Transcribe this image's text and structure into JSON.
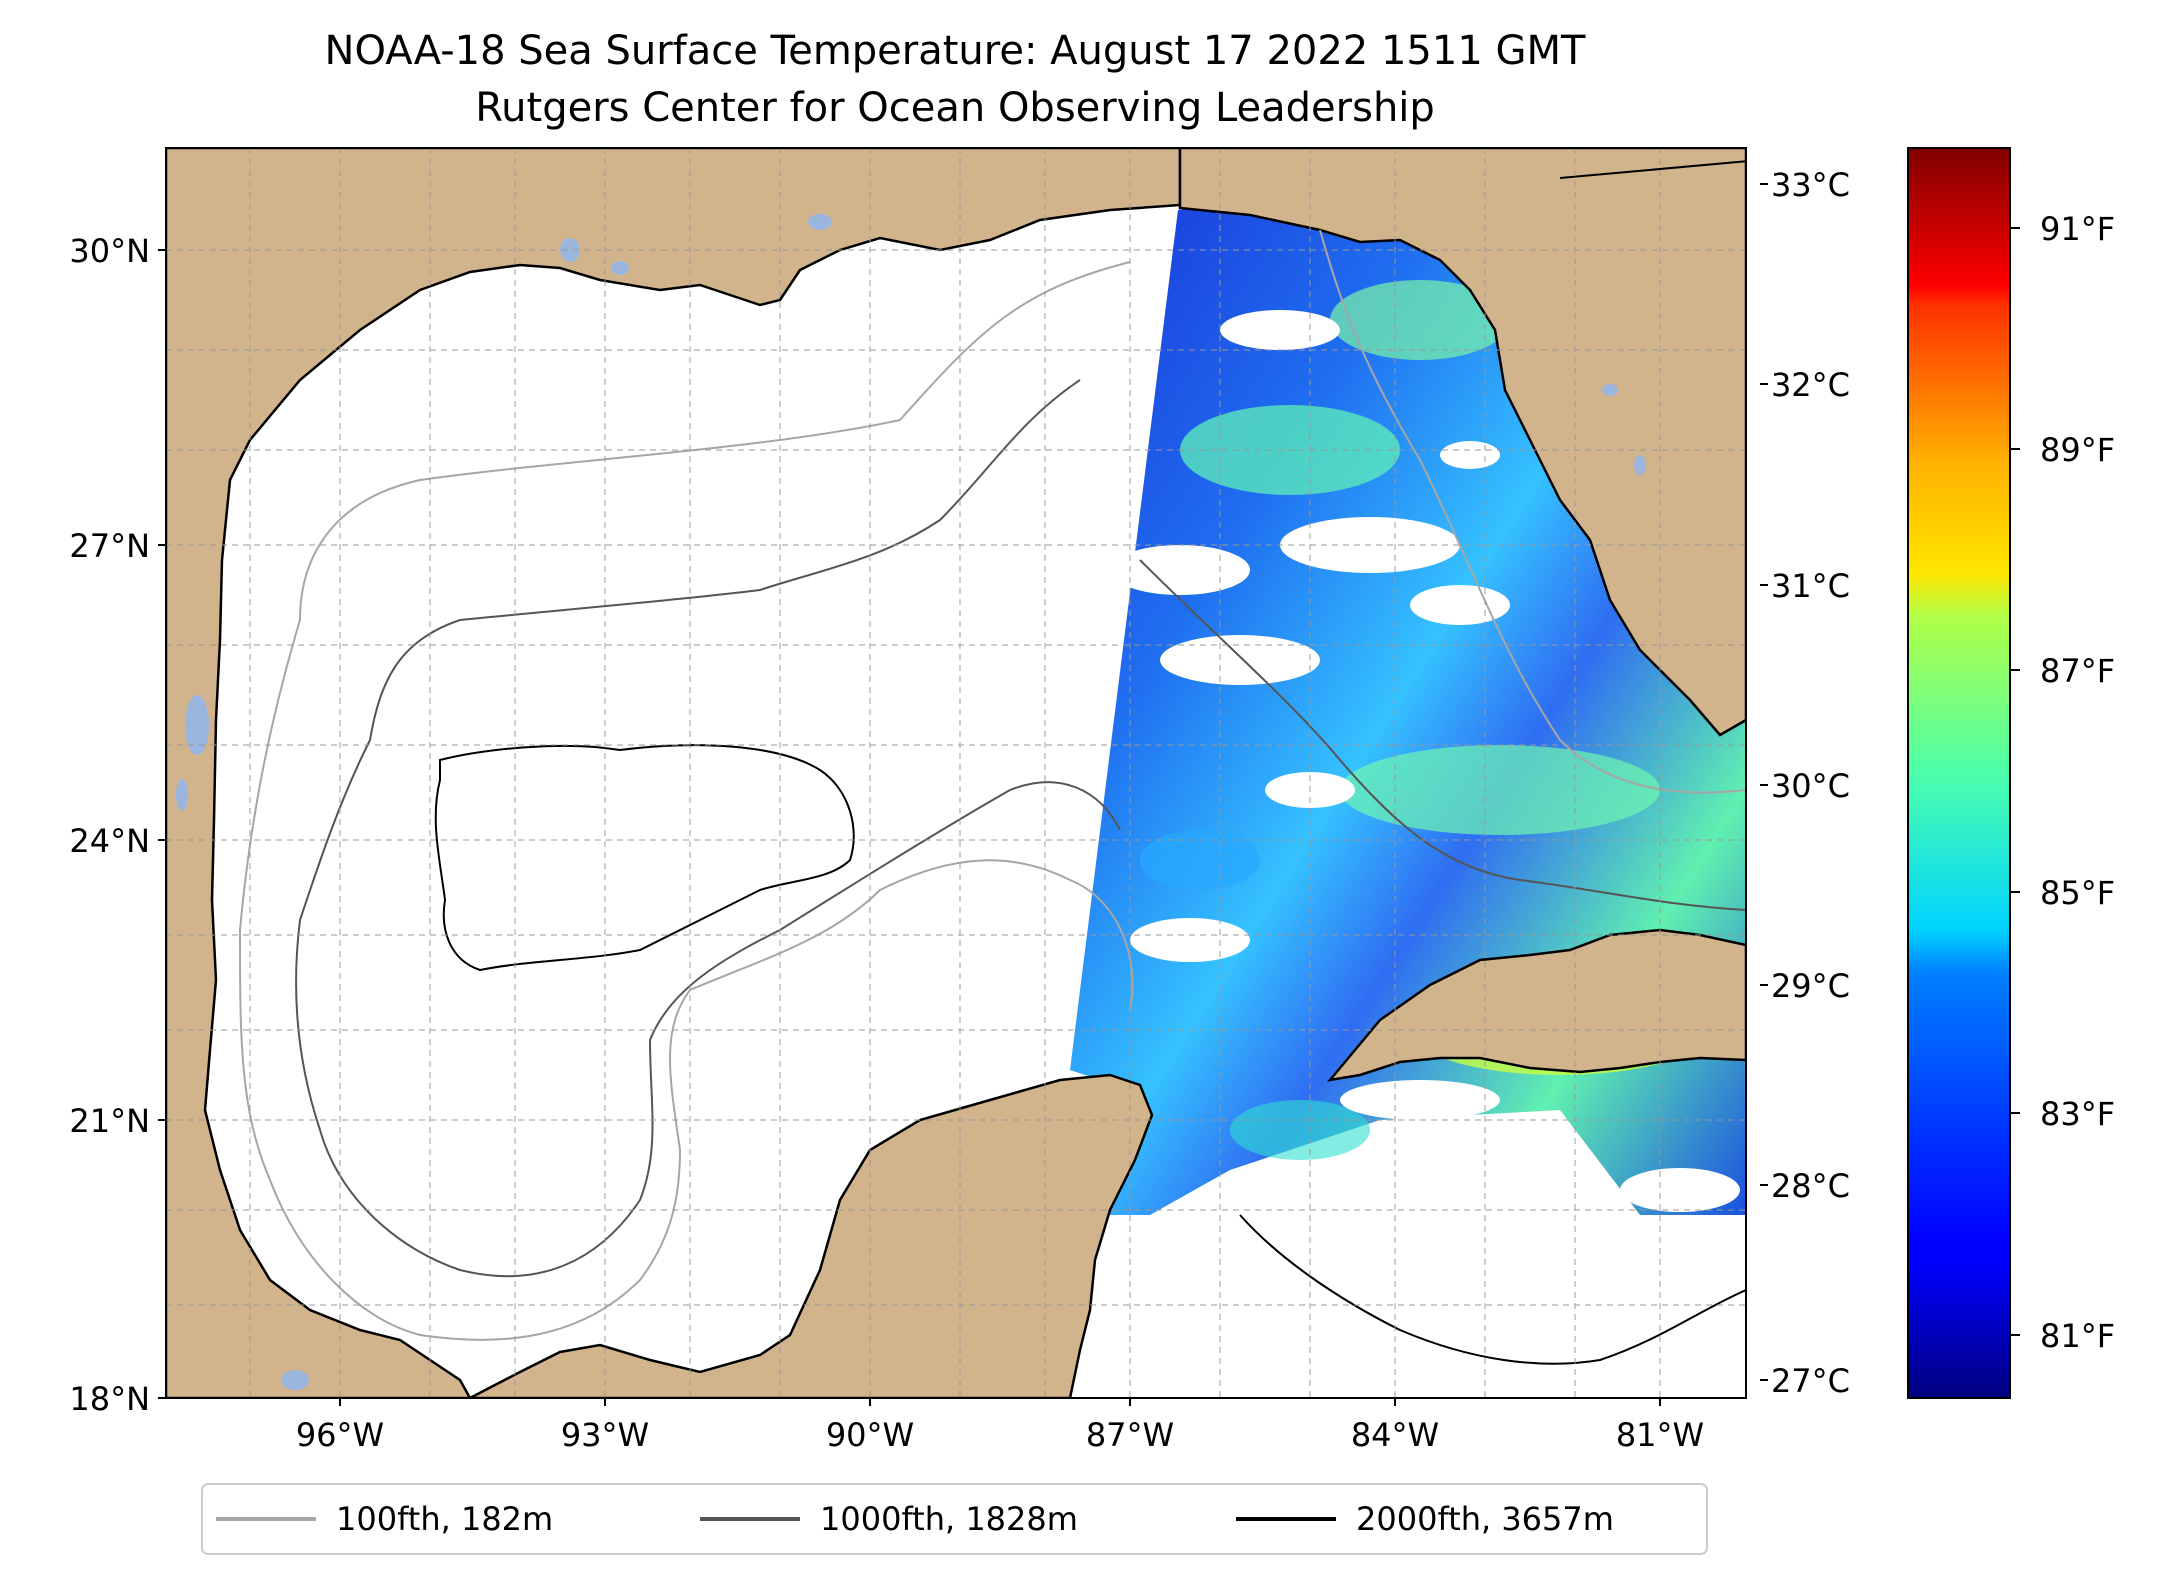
{
  "title": {
    "line1": "NOAA-18 Sea Surface Temperature: August 17 2022 1511 GMT",
    "line2": "Rutgers Center for Ocean Observing Leadership"
  },
  "map": {
    "lon_range": [
      -98.0,
      -80.3
    ],
    "lat_range": [
      18.0,
      31.0
    ],
    "lon_ticks": [
      "96°W",
      "93°W",
      "90°W",
      "87°W",
      "84°W",
      "81°W"
    ],
    "lat_ticks": [
      "30°N",
      "27°N",
      "24°N",
      "21°N",
      "18°N"
    ],
    "gridlines": true,
    "land_color": "#d2b48c",
    "lake_color": "#9ab6de",
    "coast_color": "#000000"
  },
  "colorbar": {
    "celsius_labels": [
      "33°C",
      "32°C",
      "31°C",
      "30°C",
      "29°C",
      "28°C",
      "27°C"
    ],
    "fahrenheit_labels": [
      "91°F",
      "89°F",
      "87°F",
      "85°F",
      "83°F",
      "81°F"
    ],
    "colormap": "jet",
    "range_c": [
      26.9,
      33.1
    ]
  },
  "legend": {
    "placement": "bottom",
    "items": [
      {
        "label": "100fth, 182m",
        "color": "#a6a6a6"
      },
      {
        "label": "1000fth, 1828m",
        "color": "#555555"
      },
      {
        "label": "2000fth, 3657m",
        "color": "#000000"
      }
    ]
  }
}
